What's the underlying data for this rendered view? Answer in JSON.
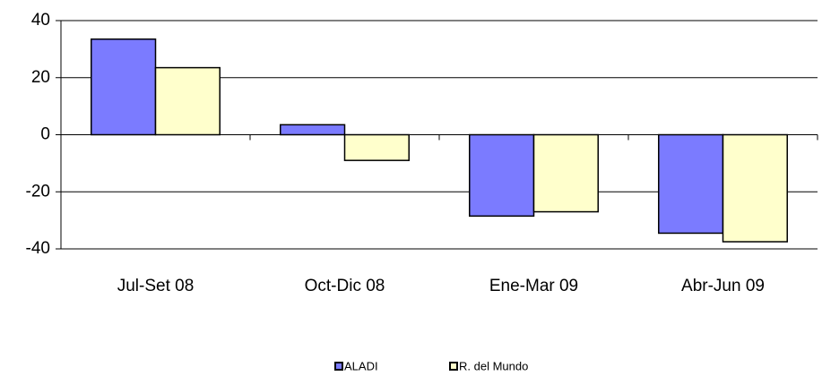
{
  "chart_data": {
    "type": "bar",
    "categories": [
      "Jul-Set 08",
      "Oct-Dic 08",
      "Ene-Mar 09",
      "Abr-Jun 09"
    ],
    "series": [
      {
        "name": "ALADI",
        "color": "#7b7bff",
        "values": [
          33.5,
          3.5,
          -28.5,
          -34.5
        ]
      },
      {
        "name": "R. del Mundo",
        "color": "#ffffcc",
        "values": [
          23.5,
          -9,
          -27,
          -37.5
        ]
      }
    ],
    "ylim": [
      -40,
      40
    ],
    "yticks": [
      -40,
      -20,
      0,
      20,
      40
    ],
    "grid": true,
    "legend": "bottom"
  }
}
